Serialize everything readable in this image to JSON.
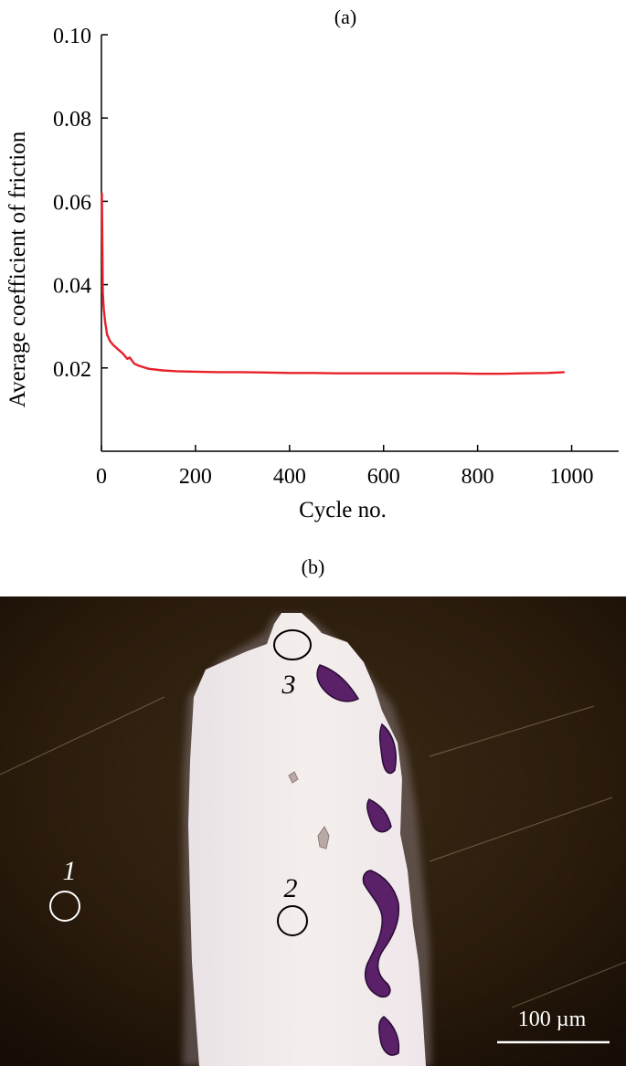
{
  "panel_a_label": "(a)",
  "panel_b_label": "(b)",
  "chart_data": {
    "type": "line",
    "title": "",
    "xlabel": "Cycle no.",
    "ylabel": "Average coefficient of friction",
    "xlim": [
      0,
      1100
    ],
    "ylim": [
      0,
      0.1
    ],
    "x_ticks": [
      0,
      200,
      400,
      600,
      800,
      1000
    ],
    "y_ticks": [
      0.02,
      0.04,
      0.06,
      0.08,
      0.1
    ],
    "x_tick_labels": [
      "0",
      "200",
      "400",
      "600",
      "800",
      "1000"
    ],
    "y_tick_labels": [
      "0.02",
      "0.04",
      "0.06",
      "0.08",
      "0.10"
    ],
    "grid": false,
    "legend": "none",
    "series": [
      {
        "color": "#e8202a",
        "x": [
          1,
          2,
          3,
          5,
          8,
          12,
          18,
          25,
          35,
          45,
          55,
          60,
          70,
          80,
          100,
          130,
          160,
          200,
          250,
          300,
          350,
          400,
          450,
          500,
          550,
          600,
          650,
          700,
          750,
          800,
          850,
          900,
          950,
          985
        ],
        "y": [
          0.062,
          0.05,
          0.038,
          0.034,
          0.031,
          0.028,
          0.0265,
          0.0255,
          0.0245,
          0.0235,
          0.0222,
          0.0225,
          0.021,
          0.0205,
          0.0198,
          0.0194,
          0.0192,
          0.0191,
          0.019,
          0.019,
          0.0189,
          0.0188,
          0.0188,
          0.0187,
          0.0187,
          0.0187,
          0.0187,
          0.0187,
          0.0187,
          0.0186,
          0.0186,
          0.0187,
          0.0188,
          0.019
        ]
      }
    ]
  },
  "micrograph": {
    "markers": [
      {
        "label": "1"
      },
      {
        "label": "2"
      },
      {
        "label": "3"
      }
    ],
    "scale_bar_label": "100 µm"
  }
}
